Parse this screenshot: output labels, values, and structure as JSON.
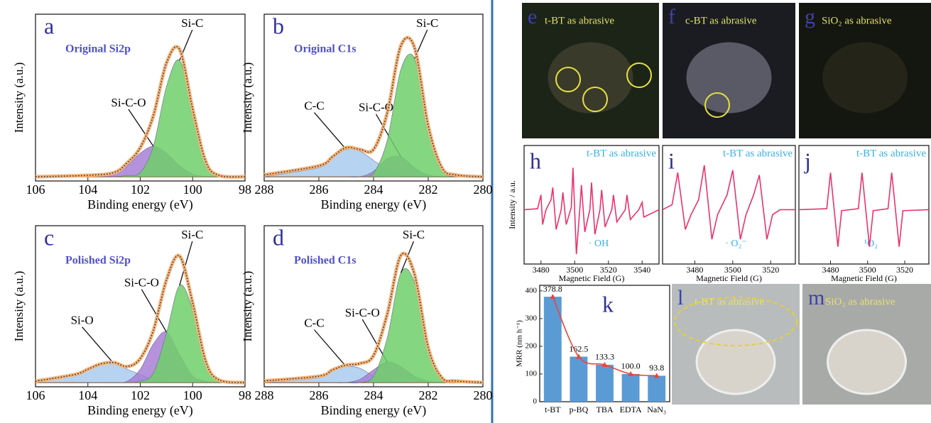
{
  "chart_data": [
    {
      "type": "area",
      "panel": "a",
      "title": "Original Si2p",
      "xlabel": "Binding energy (eV)",
      "ylabel": "Intensity (a.u.)",
      "xlim": [
        106,
        98
      ],
      "xticks": [
        106,
        104,
        102,
        100,
        98
      ],
      "ylim": [
        0,
        1.05
      ],
      "x": [
        106,
        104,
        103,
        102.5,
        102,
        101.5,
        101,
        100.5,
        100,
        99.5,
        99,
        98
      ],
      "series": [
        {
          "name": "Si-C-O",
          "color": "#a77fd6",
          "values": [
            0,
            0,
            0.02,
            0.08,
            0.17,
            0.22,
            0.17,
            0.08,
            0.02,
            0,
            0,
            0
          ]
        },
        {
          "name": "Si-C",
          "color": "#6fcf6a",
          "values": [
            0,
            0,
            0,
            0.01,
            0.03,
            0.22,
            0.65,
            0.84,
            0.47,
            0.11,
            0.01,
            0
          ]
        },
        {
          "color": "#f3b27a",
          "style": "dotted",
          "values": [
            0,
            0.01,
            0.03,
            0.1,
            0.21,
            0.44,
            0.82,
            0.92,
            0.49,
            0.11,
            0.01,
            0
          ]
        }
      ]
    },
    {
      "type": "area",
      "panel": "b",
      "title": "Original C1s",
      "xlabel": "Binding energy (eV)",
      "ylabel": "Intensity (a.u.)",
      "xlim": [
        288,
        280
      ],
      "xticks": [
        288,
        286,
        284,
        282,
        280
      ],
      "ylim": [
        0,
        0.8
      ],
      "x": [
        288,
        286,
        285.5,
        285,
        284.5,
        284,
        283.5,
        283,
        282.5,
        282,
        281.5,
        281,
        280
      ],
      "series": [
        {
          "name": "C-C",
          "color": "#a9cdf0",
          "values": [
            0,
            0.05,
            0.1,
            0.15,
            0.14,
            0.09,
            0.04,
            0.01,
            0,
            0,
            0,
            0,
            0
          ]
        },
        {
          "name": "Si-C-O",
          "color": "#a77fd6",
          "values": [
            0,
            0,
            0,
            0,
            0,
            0.03,
            0.1,
            0.11,
            0.05,
            0.01,
            0,
            0,
            0
          ]
        },
        {
          "name": "Si-C",
          "color": "#6fcf6a",
          "values": [
            0,
            0,
            0,
            0,
            0,
            0.02,
            0.2,
            0.59,
            0.65,
            0.26,
            0.04,
            0,
            0
          ]
        },
        {
          "color": "#f3b27a",
          "style": "dotted",
          "values": [
            0.01,
            0.06,
            0.11,
            0.16,
            0.15,
            0.15,
            0.35,
            0.72,
            0.71,
            0.28,
            0.05,
            0.01,
            0
          ]
        }
      ]
    },
    {
      "type": "area",
      "panel": "c",
      "title": "Polished Si2p",
      "xlabel": "Binding energy (eV)",
      "ylabel": "Intensity (a.u.)",
      "xlim": [
        106,
        98
      ],
      "xticks": [
        106,
        104,
        102,
        100,
        98
      ],
      "ylim": [
        0,
        1.05
      ],
      "x": [
        106,
        104.5,
        104,
        103.5,
        103,
        102.5,
        102,
        101.5,
        101,
        100.5,
        100,
        99.5,
        99,
        98
      ],
      "series": [
        {
          "name": "Si-O",
          "color": "#a9cdf0",
          "values": [
            0,
            0.05,
            0.09,
            0.13,
            0.14,
            0.1,
            0.06,
            0.02,
            0.01,
            0,
            0,
            0,
            0,
            0
          ]
        },
        {
          "name": "Si-C-O",
          "color": "#a77fd6",
          "values": [
            0,
            0,
            0,
            0,
            0,
            0.01,
            0.1,
            0.29,
            0.38,
            0.21,
            0.05,
            0.01,
            0,
            0
          ]
        },
        {
          "name": "Si-C",
          "color": "#6fcf6a",
          "values": [
            0,
            0,
            0,
            0,
            0,
            0,
            0.01,
            0.07,
            0.37,
            0.73,
            0.55,
            0.15,
            0.02,
            0
          ]
        },
        {
          "color": "#f3b27a",
          "style": "dotted",
          "values": [
            0.01,
            0.06,
            0.1,
            0.14,
            0.15,
            0.12,
            0.18,
            0.39,
            0.77,
            0.95,
            0.6,
            0.16,
            0.02,
            0
          ]
        }
      ]
    },
    {
      "type": "area",
      "panel": "d",
      "title": "Polished C1s",
      "xlabel": "Binding energy (eV)",
      "ylabel": "Intensity (a.u.)",
      "xlim": [
        288,
        280
      ],
      "xticks": [
        288,
        286,
        284,
        282,
        280
      ],
      "ylim": [
        0,
        0.88
      ],
      "x": [
        288,
        286,
        285.5,
        285,
        284.5,
        284,
        283.5,
        283,
        282.5,
        282,
        281.5,
        281,
        280
      ],
      "series": [
        {
          "name": "C-C",
          "color": "#a9cdf0",
          "values": [
            0,
            0.03,
            0.07,
            0.1,
            0.09,
            0.04,
            0.01,
            0,
            0,
            0,
            0,
            0,
            0
          ]
        },
        {
          "name": "Si-C-O",
          "color": "#a77fd6",
          "values": [
            0,
            0,
            0,
            0,
            0.02,
            0.08,
            0.13,
            0.1,
            0.04,
            0.01,
            0,
            0,
            0
          ]
        },
        {
          "name": "Si-C",
          "color": "#6fcf6a",
          "values": [
            0,
            0,
            0,
            0,
            0,
            0.04,
            0.28,
            0.69,
            0.63,
            0.21,
            0.03,
            0,
            0
          ]
        },
        {
          "color": "#f3b27a",
          "style": "dotted",
          "values": [
            0.01,
            0.04,
            0.08,
            0.11,
            0.12,
            0.17,
            0.43,
            0.8,
            0.68,
            0.22,
            0.03,
            0.01,
            0
          ]
        }
      ]
    },
    {
      "type": "line",
      "panel": "h",
      "title": "t-BT as abrasive",
      "annotation": "· OH",
      "xlabel": "Magnetic Field (G)",
      "ylabel": "Intensity / a.u.",
      "xlim": [
        3470,
        3550
      ],
      "xticks": [
        3480,
        3500,
        3520,
        3540
      ],
      "ylim": [
        -1.1,
        1.3
      ],
      "x": [
        3470,
        3478,
        3480,
        3481,
        3483,
        3486,
        3487,
        3489,
        3492,
        3493,
        3495,
        3498,
        3499,
        3501,
        3503,
        3504,
        3506,
        3509,
        3510,
        3512,
        3515,
        3516,
        3518,
        3522,
        3523,
        3525,
        3530,
        3531,
        3533,
        3538,
        3540,
        3541,
        3550
      ],
      "series": [
        {
          "color": "#e8336e",
          "values": [
            0,
            0.02,
            0.3,
            -0.3,
            0,
            0.2,
            0.45,
            -0.4,
            0,
            0.35,
            -0.3,
            0.05,
            0.85,
            -0.9,
            0,
            0.5,
            -0.45,
            0,
            0.55,
            -0.5,
            0,
            0.4,
            -0.35,
            0,
            0.3,
            -0.25,
            0,
            0.3,
            -0.2,
            0,
            0.15,
            -0.15,
            0
          ]
        }
      ]
    },
    {
      "type": "line",
      "panel": "i",
      "title": "t-BT as abrasive",
      "annotation": "· O₂⁻",
      "xlabel": "Magnetic Field (G)",
      "xlim": [
        3463,
        3533
      ],
      "xticks": [
        3480,
        3500,
        3520
      ],
      "ylim": [
        -1.1,
        1.3
      ],
      "x": [
        3463,
        3468,
        3471,
        3475,
        3478,
        3482,
        3485,
        3489,
        3492,
        3497,
        3500,
        3504,
        3507,
        3511,
        3514,
        3518,
        3521,
        3525,
        3533
      ],
      "series": [
        {
          "color": "#e8336e",
          "values": [
            0,
            0.1,
            0.75,
            -0.4,
            -0.1,
            0.2,
            0.9,
            -0.6,
            -0.1,
            0.3,
            0.8,
            -0.6,
            -0.1,
            0.3,
            0.7,
            -0.6,
            -0.1,
            0,
            0
          ]
        }
      ]
    },
    {
      "type": "line",
      "panel": "j",
      "title": "t-BT as abrasive",
      "annotation": "¹O₂",
      "xlabel": "Magnetic Field (G)",
      "xlim": [
        3463,
        3533
      ],
      "xticks": [
        3480,
        3500,
        3520
      ],
      "ylim": [
        -1.1,
        1.3
      ],
      "x": [
        3463,
        3478,
        3480,
        3482,
        3484,
        3486,
        3495,
        3497,
        3499,
        3501,
        3503,
        3511,
        3513,
        3515,
        3517,
        3519,
        3533
      ],
      "series": [
        {
          "color": "#e8336e",
          "values": [
            0,
            0.02,
            0.75,
            0,
            -0.75,
            -0.02,
            0.02,
            0.75,
            0,
            -0.75,
            -0.02,
            0.02,
            0.75,
            0,
            -0.75,
            -0.02,
            0
          ]
        }
      ]
    },
    {
      "type": "bar",
      "panel": "k",
      "ylabel": "MRR (nm h⁻¹)",
      "categories": [
        "t-BT",
        "p-BQ",
        "TBA",
        "EDTA",
        "NaN₃"
      ],
      "values": [
        378.8,
        162.5,
        133.3,
        100.0,
        93.8
      ],
      "value_labels": [
        "378.8",
        "162.5",
        "133.3",
        "100.0",
        "93.8"
      ],
      "color": "#5b9bd5",
      "line_color": "#e8473a",
      "ylim": [
        0,
        420
      ],
      "yticks": [
        0,
        100,
        200,
        300,
        400
      ]
    }
  ],
  "photos": [
    {
      "letter": "e",
      "label": "t-BT as abrasive"
    },
    {
      "letter": "f",
      "label": "c-BT as abrasive"
    },
    {
      "letter": "g",
      "label": "SiO₂ as abrasive"
    },
    {
      "letter": "l",
      "label": "t-BT as abrasive"
    },
    {
      "letter": "m",
      "label": "SiO₂ as abrasive"
    }
  ]
}
